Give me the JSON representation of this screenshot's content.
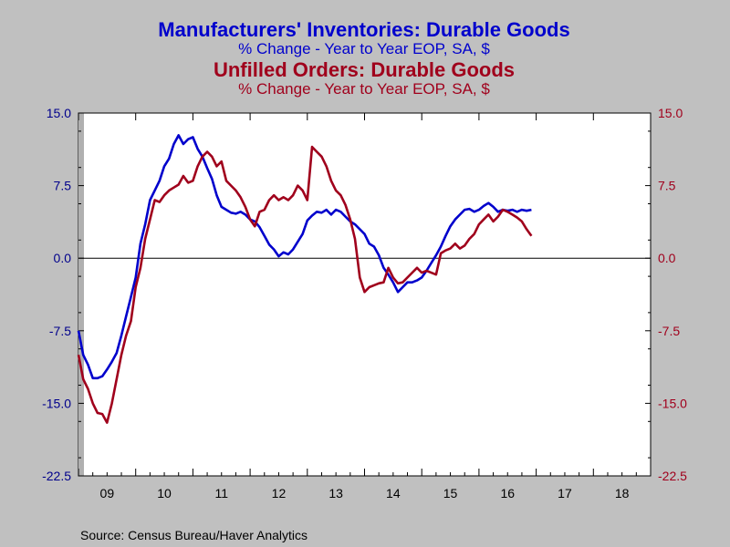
{
  "titles": {
    "series1_title": "Manufacturers' Inventories: Durable Goods",
    "series1_subtitle": "% Change - Year to Year     EOP, SA, $",
    "series2_title": "Unfilled Orders: Durable Goods",
    "series2_subtitle": "% Change - Year to Year     EOP, SA, $"
  },
  "source": "Source:  Census Bureau/Haver Analytics",
  "colors": {
    "series1": "#0000cc",
    "series2": "#a0001c",
    "left_axis": "#00008b",
    "right_axis": "#a0001c",
    "background": "#c0c0c0",
    "plot": "#ffffff"
  },
  "chart_data": {
    "type": "line",
    "x_unit": "year (decimal, monthly observations)",
    "xlim": [
      2009.0,
      2019.0
    ],
    "ylim": [
      -22.5,
      15.0
    ],
    "y_ticks": [
      15.0,
      7.5,
      0.0,
      -7.5,
      -15.0,
      -22.5
    ],
    "y_tick_labels": [
      "15.0",
      "7.5",
      "0.0",
      "-7.5",
      "-15.0",
      "-22.5"
    ],
    "x_tick_labels": [
      "09",
      "10",
      "11",
      "12",
      "13",
      "14",
      "15",
      "16",
      "17",
      "18"
    ],
    "grid": false,
    "zero_line": true,
    "left_axis_series": "Manufacturers' Inventories: Durable Goods",
    "right_axis_series": "Unfilled Orders: Durable Goods",
    "series": [
      {
        "name": "Manufacturers' Inventories: Durable Goods",
        "x_start": 2009.0,
        "step": 0.0833333,
        "values": [
          -7.5,
          -10.0,
          -11.0,
          -12.4,
          -12.4,
          -12.2,
          -11.5,
          -10.7,
          -9.8,
          -8.0,
          -6.0,
          -4.0,
          -2.0,
          1.5,
          3.5,
          6.0,
          7.0,
          8.0,
          9.5,
          10.3,
          11.8,
          12.7,
          11.8,
          12.3,
          12.5,
          11.3,
          10.5,
          9.3,
          8.2,
          6.5,
          5.3,
          5.0,
          4.7,
          4.6,
          4.8,
          4.5,
          4.0,
          3.8,
          3.2,
          2.3,
          1.4,
          0.9,
          0.2,
          0.6,
          0.4,
          0.9,
          1.7,
          2.5,
          3.9,
          4.4,
          4.8,
          4.7,
          5.0,
          4.5,
          5.0,
          4.8,
          4.3,
          3.8,
          3.5,
          3.0,
          2.5,
          1.5,
          1.2,
          0.3,
          -1.0,
          -1.7,
          -2.5,
          -3.5,
          -3.0,
          -2.5,
          -2.5,
          -2.3,
          -2.0,
          -1.3,
          -0.5,
          0.3,
          1.2,
          2.3,
          3.3,
          4.0,
          4.5,
          5.0,
          5.1,
          4.8,
          5.0,
          5.4,
          5.7,
          5.3,
          4.8,
          5.0,
          4.9,
          5.0,
          4.8,
          5.0,
          4.9,
          5.0
        ]
      },
      {
        "name": "Unfilled Orders: Durable Goods",
        "x_start": 2009.0,
        "step": 0.0833333,
        "values": [
          -10.0,
          -12.5,
          -13.5,
          -15.0,
          -16.0,
          -16.1,
          -17.0,
          -15.0,
          -12.5,
          -10.0,
          -8.0,
          -6.5,
          -3.0,
          -1.0,
          2.0,
          4.0,
          6.0,
          5.8,
          6.5,
          7.0,
          7.3,
          7.6,
          8.5,
          7.8,
          8.0,
          9.5,
          10.5,
          11.0,
          10.5,
          9.5,
          10.0,
          8.0,
          7.5,
          7.0,
          6.3,
          5.3,
          4.0,
          3.3,
          4.8,
          5.0,
          6.0,
          6.5,
          6.0,
          6.3,
          6.0,
          6.5,
          7.5,
          7.0,
          6.0,
          11.5,
          11.0,
          10.5,
          9.5,
          8.0,
          7.0,
          6.5,
          5.5,
          4.0,
          2.0,
          -2.0,
          -3.5,
          -3.0,
          -2.8,
          -2.6,
          -2.5,
          -1.0,
          -2.0,
          -2.6,
          -2.5,
          -2.0,
          -1.5,
          -1.0,
          -1.5,
          -1.3,
          -1.5,
          -1.7,
          0.5,
          0.8,
          1.0,
          1.5,
          1.0,
          1.3,
          2.0,
          2.5,
          3.5,
          4.0,
          4.5,
          3.8,
          4.3,
          5.0,
          4.8,
          4.5,
          4.2,
          3.8,
          3.0,
          2.3
        ]
      }
    ]
  }
}
